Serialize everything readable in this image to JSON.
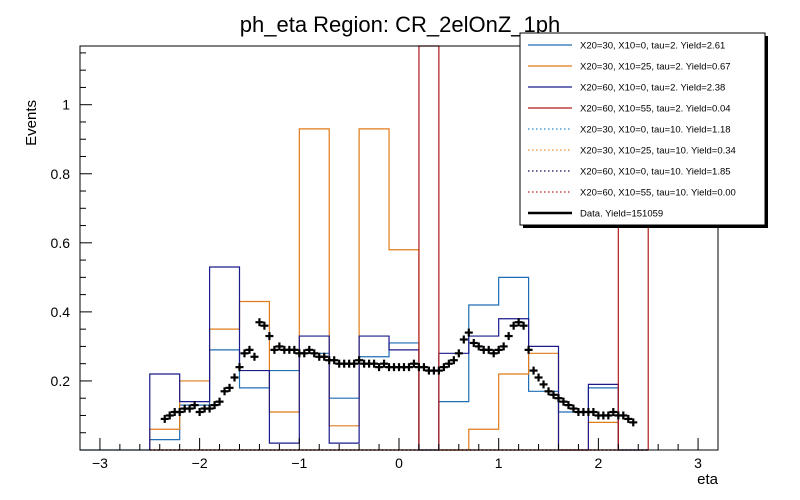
{
  "chart_data": {
    "type": "histogram",
    "title": "ph_eta Region: CR_2elOnZ_1ph",
    "xlabel": "eta",
    "ylabel": "Events",
    "xlim": [
      -3.2,
      3.2
    ],
    "ylim": [
      0,
      1.17
    ],
    "x_ticks": [
      -3,
      -2,
      -1,
      0,
      1,
      2,
      3
    ],
    "y_ticks": [
      0.2,
      0.4,
      0.6,
      0.8,
      1
    ],
    "bin_edges": [
      -2.5,
      -2.2,
      -1.9,
      -1.6,
      -1.3,
      -1.0,
      -0.7,
      -0.4,
      -0.1,
      0.2,
      0.4,
      0.7,
      1.0,
      1.3,
      1.6,
      1.9,
      2.2,
      2.5
    ],
    "legend_position": "top-right",
    "series": [
      {
        "name": "X20=30, X10=0, tau=2. Yield=2.61",
        "color": "#1f6db5",
        "style": "solid",
        "values": [
          0.03,
          0.13,
          0.29,
          0.18,
          0.23,
          0.28,
          0.15,
          0.27,
          0.31,
          0.0,
          0.14,
          0.42,
          0.5,
          0.17,
          0.11,
          0.18,
          0.0
        ]
      },
      {
        "name": "X20=30, X10=25, tau=2. Yield=0.67",
        "color": "#e07b1a",
        "style": "solid",
        "values": [
          0.06,
          0.2,
          0.35,
          0.43,
          0.11,
          0.93,
          0.07,
          0.93,
          0.58,
          0.0,
          0.0,
          0.06,
          0.22,
          0.28,
          0.0,
          0.08,
          0.0
        ]
      },
      {
        "name": "X20=60, X10=0, tau=2. Yield=2.38",
        "color": "#1a1a8c",
        "style": "solid",
        "values": [
          0.22,
          0.14,
          0.53,
          0.23,
          0.02,
          0.33,
          0.02,
          0.33,
          0.29,
          0.0,
          0.28,
          0.33,
          0.38,
          0.3,
          0.0,
          0.19,
          0.0
        ]
      },
      {
        "name": "X20=60, X10=55, tau=2. Yield=0.04",
        "color": "#b01a1a",
        "style": "solid",
        "values": [
          0.0,
          0.0,
          0.0,
          0.0,
          0.0,
          0.0,
          0.0,
          0.0,
          0.0,
          1.17,
          0.0,
          0.0,
          0.0,
          0.0,
          0.0,
          0.0,
          1.17
        ]
      },
      {
        "name": "X20=30, X10=0, tau=10. Yield=1.18",
        "color": "#2a8ad0",
        "style": "dotted",
        "values": [
          0.0,
          0.0,
          0.0,
          0.0,
          0.0,
          0.0,
          0.0,
          0.0,
          0.0,
          0.0,
          0.0,
          0.0,
          0.0,
          0.0,
          0.0,
          0.0,
          0.0
        ]
      },
      {
        "name": "X20=30, X10=25, tau=10. Yield=0.34",
        "color": "#f28c28",
        "style": "dotted",
        "values": [
          0.0,
          0.0,
          0.0,
          0.0,
          0.0,
          0.0,
          0.0,
          0.0,
          0.0,
          0.0,
          0.0,
          0.0,
          0.0,
          0.0,
          0.0,
          0.0,
          0.0
        ]
      },
      {
        "name": "X20=60, X10=0, tau=10. Yield=1.85",
        "color": "#101060",
        "style": "dotted",
        "values": [
          0.0,
          0.0,
          0.0,
          0.0,
          0.0,
          0.0,
          0.0,
          0.0,
          0.0,
          0.0,
          0.0,
          0.0,
          0.0,
          0.0,
          0.0,
          0.0,
          0.0
        ]
      },
      {
        "name": "X20=60, X10=55, tau=10. Yield=0.00",
        "color": "#c02020",
        "style": "dotted",
        "values": [
          0.0,
          0.0,
          0.0,
          0.0,
          0.0,
          0.0,
          0.0,
          0.0,
          0.0,
          0.0,
          0.0,
          0.0,
          0.0,
          0.0,
          0.0,
          0.0,
          0.0
        ]
      }
    ],
    "data": {
      "name": "Data. Yield=151059",
      "color": "#000000",
      "x": [
        -2.35,
        -2.3,
        -2.25,
        -2.2,
        -2.15,
        -2.1,
        -2.05,
        -2.0,
        -1.95,
        -1.9,
        -1.85,
        -1.8,
        -1.75,
        -1.7,
        -1.65,
        -1.6,
        -1.55,
        -1.5,
        -1.45,
        -1.4,
        -1.35,
        -1.3,
        -1.25,
        -1.2,
        -1.15,
        -1.1,
        -1.05,
        -1.0,
        -0.95,
        -0.9,
        -0.85,
        -0.8,
        -0.75,
        -0.7,
        -0.65,
        -0.6,
        -0.55,
        -0.5,
        -0.45,
        -0.4,
        -0.35,
        -0.3,
        -0.25,
        -0.2,
        -0.15,
        -0.1,
        -0.05,
        0.0,
        0.05,
        0.1,
        0.15,
        0.2,
        0.25,
        0.3,
        0.35,
        0.4,
        0.45,
        0.5,
        0.55,
        0.6,
        0.65,
        0.7,
        0.75,
        0.8,
        0.85,
        0.9,
        0.95,
        1.0,
        1.05,
        1.1,
        1.15,
        1.2,
        1.25,
        1.3,
        1.35,
        1.4,
        1.45,
        1.5,
        1.55,
        1.6,
        1.65,
        1.7,
        1.75,
        1.8,
        1.85,
        1.9,
        1.95,
        2.0,
        2.05,
        2.1,
        2.15,
        2.2,
        2.25,
        2.3,
        2.35
      ],
      "y": [
        0.09,
        0.1,
        0.11,
        0.11,
        0.12,
        0.12,
        0.13,
        0.11,
        0.12,
        0.12,
        0.13,
        0.14,
        0.17,
        0.18,
        0.21,
        0.24,
        0.28,
        0.29,
        0.27,
        0.37,
        0.36,
        0.33,
        0.29,
        0.3,
        0.29,
        0.29,
        0.29,
        0.28,
        0.28,
        0.29,
        0.28,
        0.27,
        0.27,
        0.26,
        0.26,
        0.25,
        0.25,
        0.25,
        0.25,
        0.26,
        0.25,
        0.25,
        0.25,
        0.24,
        0.25,
        0.24,
        0.24,
        0.24,
        0.24,
        0.24,
        0.25,
        0.24,
        0.24,
        0.23,
        0.23,
        0.23,
        0.24,
        0.25,
        0.26,
        0.28,
        0.32,
        0.34,
        0.31,
        0.3,
        0.29,
        0.29,
        0.28,
        0.29,
        0.3,
        0.33,
        0.36,
        0.37,
        0.36,
        0.29,
        0.23,
        0.21,
        0.19,
        0.17,
        0.16,
        0.15,
        0.14,
        0.13,
        0.12,
        0.11,
        0.11,
        0.11,
        0.11,
        0.1,
        0.1,
        0.1,
        0.11,
        0.1,
        0.1,
        0.09,
        0.08
      ]
    },
    "grid": false
  }
}
